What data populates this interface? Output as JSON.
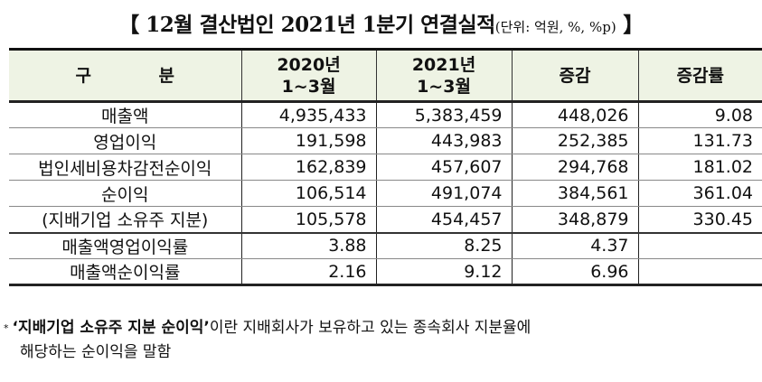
{
  "title": {
    "main": "【 12월 결산법인 2021년 1분기 연결실적",
    "unit": "(단위: 억원, %, %p)",
    "close": " 】"
  },
  "table": {
    "headers": [
      {
        "line1": "구 분",
        "line2": ""
      },
      {
        "line1": "2020년",
        "line2": "1~3월"
      },
      {
        "line1": "2021년",
        "line2": "1~3월"
      },
      {
        "line1": "증감",
        "line2": ""
      },
      {
        "line1": "증감률",
        "line2": ""
      }
    ],
    "rows": [
      {
        "label": "매출액",
        "y2020": "4,935,433",
        "y2021": "5,383,459",
        "change": "448,026",
        "rate": "9.08"
      },
      {
        "label": "영업이익",
        "y2020": "191,598",
        "y2021": "443,983",
        "change": "252,385",
        "rate": "131.73"
      },
      {
        "label": "법인세비용차감전순이익",
        "y2020": "162,839",
        "y2021": "457,607",
        "change": "294,768",
        "rate": "181.02"
      },
      {
        "label": "순이익",
        "y2020": "106,514",
        "y2021": "491,074",
        "change": "384,561",
        "rate": "361.04"
      },
      {
        "label": "(지배기업 소유주 지분)",
        "y2020": "105,578",
        "y2021": "454,457",
        "change": "348,879",
        "rate": "330.45"
      },
      {
        "label": "매출액영업이익률",
        "y2020": "3.88",
        "y2021": "8.25",
        "change": "4.37",
        "rate": ""
      },
      {
        "label": "매출액순이익률",
        "y2020": "2.16",
        "y2021": "9.12",
        "change": "6.96",
        "rate": ""
      }
    ]
  },
  "note": {
    "marker": "*",
    "bold_term": "‘지배기업 소유주 지분 순이익’",
    "text_line1": "이란 지배회사가 보유하고 있는 종속회사 지분율에",
    "text_line2": "해당하는 순이익을 말함"
  }
}
